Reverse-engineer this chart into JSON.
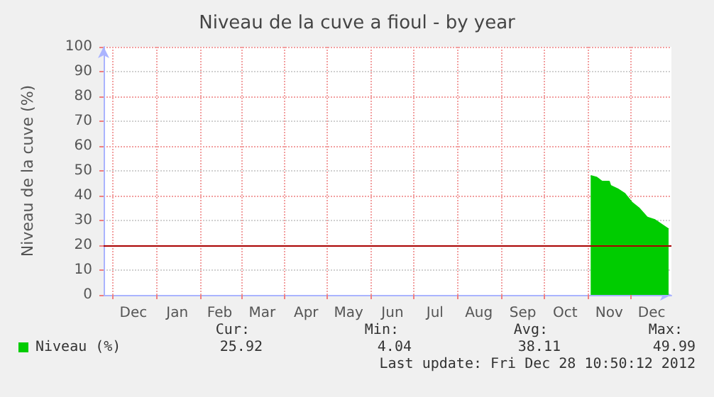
{
  "chart_data": {
    "type": "area",
    "title": "Niveau de la cuve a fioul - by year",
    "ylabel": "Niveau de la cuve (%)",
    "xlim": [
      "2011-11-25",
      "2012-12-30"
    ],
    "xticks": [
      {
        "value": "2011-12-01",
        "label": null
      },
      {
        "value": "2012-01-01",
        "label": null
      },
      {
        "value": "2012-02-01",
        "label": null
      },
      {
        "value": "2012-03-01",
        "label": null
      },
      {
        "value": "2012-04-01",
        "label": null
      },
      {
        "value": "2012-05-01",
        "label": null
      },
      {
        "value": "2012-06-01",
        "label": null
      },
      {
        "value": "2012-07-01",
        "label": null
      },
      {
        "value": "2012-08-01",
        "label": null
      },
      {
        "value": "2012-09-01",
        "label": null
      },
      {
        "value": "2012-10-01",
        "label": null
      },
      {
        "value": "2012-11-01",
        "label": null
      },
      {
        "value": "2012-12-01",
        "label": null
      },
      {
        "value": "2011-12-16",
        "label": "Dec"
      },
      {
        "value": "2012-01-16",
        "label": "Jan"
      },
      {
        "value": "2012-02-15",
        "label": "Feb"
      },
      {
        "value": "2012-03-16",
        "label": "Mar"
      },
      {
        "value": "2012-04-16",
        "label": "Apr"
      },
      {
        "value": "2012-05-16",
        "label": "May"
      },
      {
        "value": "2012-06-16",
        "label": "Jun"
      },
      {
        "value": "2012-07-16",
        "label": "Jul"
      },
      {
        "value": "2012-08-16",
        "label": "Aug"
      },
      {
        "value": "2012-09-16",
        "label": "Sep"
      },
      {
        "value": "2012-10-16",
        "label": "Oct"
      },
      {
        "value": "2012-11-16",
        "label": "Nov"
      },
      {
        "value": "2012-12-16",
        "label": "Dec"
      }
    ],
    "ylim": [
      0,
      100
    ],
    "yticks": [
      0,
      10,
      20,
      30,
      40,
      50,
      60,
      70,
      80,
      90,
      100
    ],
    "grid": true,
    "legend": "bottom left",
    "series": [
      {
        "name": "Niveau (%)",
        "color": "#00cc00",
        "x": [
          "2012-11-03",
          "2012-11-07",
          "2012-11-11",
          "2012-11-16",
          "2012-11-17",
          "2012-11-22",
          "2012-11-27",
          "2012-12-02",
          "2012-12-07",
          "2012-12-13",
          "2012-12-18",
          "2012-12-23",
          "2012-12-28"
        ],
        "values": [
          48.0,
          47.4,
          45.7,
          45.7,
          44,
          42.7,
          40.8,
          37.3,
          35,
          31.2,
          30.3,
          28.4,
          26.5
        ]
      }
    ],
    "ref_lines": [
      {
        "axis": "y",
        "value": 20,
        "label": null,
        "color": "#aa0000"
      }
    ],
    "annotations": [
      "Cur:",
      "Min:",
      "Avg:",
      "Max:",
      "25.92",
      "4.04",
      "38.11",
      "49.99",
      "Last update: Fri Dec 28 10:50:12 2012"
    ]
  }
}
